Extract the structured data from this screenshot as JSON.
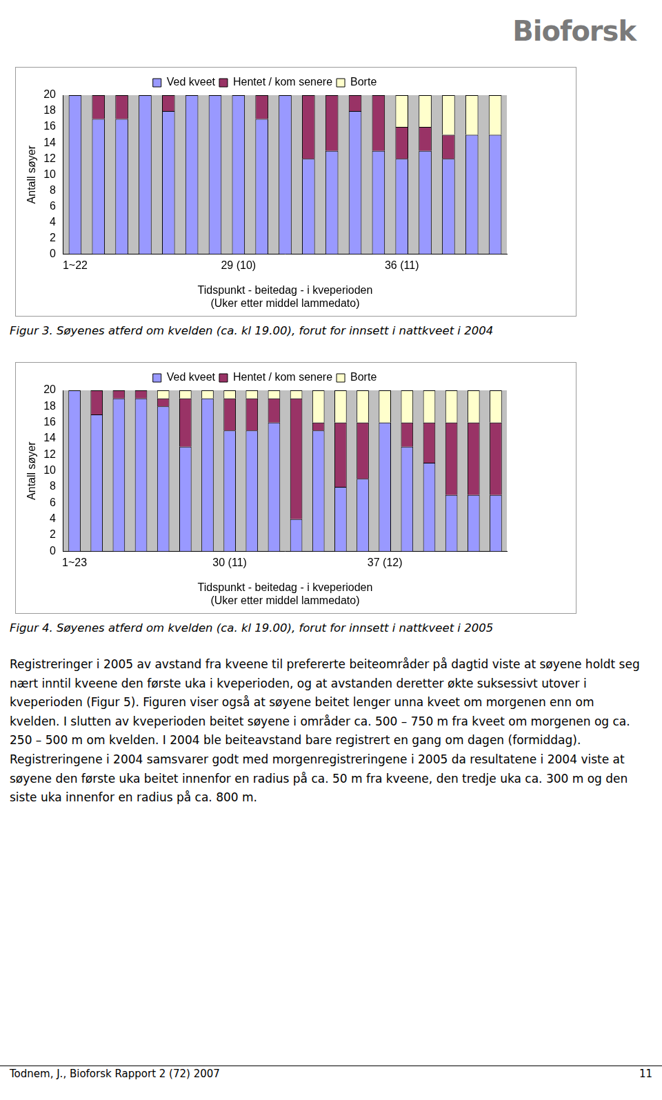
{
  "logo": "Bioforsk",
  "chart_data": [
    {
      "type": "bar",
      "stacked": true,
      "grid": false,
      "legend": "top",
      "caption": "Figur 3. Søyenes atferd om kvelden (ca. kl 19.00), forut for innsett i nattkveet i 2004",
      "x_label": [
        "Tidspunkt - beitedag - i kveperioden",
        "(Uker etter middel lammedato)"
      ],
      "y_label": "Antall søyer",
      "categories": [
        "1~22",
        null,
        null,
        null,
        null,
        null,
        null,
        "29 (10)",
        null,
        null,
        null,
        null,
        null,
        null,
        "36 (11)",
        null,
        null,
        null,
        null
      ],
      "ylim": [
        0,
        20
      ],
      "yticks": [
        0,
        2,
        4,
        6,
        8,
        10,
        12,
        14,
        16,
        18,
        20
      ],
      "series": [
        {
          "name": "Ved kveet",
          "color": "#9999ff",
          "values": [
            20,
            17,
            17,
            20,
            18,
            20,
            20,
            20,
            17,
            20,
            12,
            13,
            18,
            13,
            12,
            13,
            12,
            15,
            15
          ]
        },
        {
          "name": "Hentet / kom senere",
          "color": "#993366",
          "values": [
            0,
            3,
            3,
            0,
            2,
            0,
            0,
            0,
            3,
            0,
            8,
            7,
            2,
            7,
            4,
            3,
            3,
            0,
            0
          ]
        },
        {
          "name": "Borte",
          "color": "#ffffcc",
          "values": [
            0,
            0,
            0,
            0,
            0,
            0,
            0,
            0,
            0,
            0,
            0,
            0,
            0,
            0,
            4,
            4,
            5,
            5,
            5
          ]
        }
      ]
    },
    {
      "type": "bar",
      "stacked": true,
      "grid": false,
      "legend": "top",
      "caption": "Figur 4. Søyenes atferd om kvelden (ca. kl 19.00), forut for innsett i nattkveet i 2005",
      "x_label": [
        "Tidspunkt - beitedag - i kveperioden",
        "(Uker etter middel lammedato)"
      ],
      "y_label": "Antall søyer",
      "categories": [
        "1~23",
        null,
        null,
        null,
        null,
        null,
        null,
        "30 (11)",
        null,
        null,
        null,
        null,
        null,
        null,
        "37 (12)",
        null,
        null,
        null,
        null,
        null
      ],
      "ylim": [
        0,
        20
      ],
      "yticks": [
        0,
        2,
        4,
        6,
        8,
        10,
        12,
        14,
        16,
        18,
        20
      ],
      "series": [
        {
          "name": "Ved kveet",
          "color": "#9999ff",
          "values": [
            20,
            17,
            19,
            19,
            18,
            13,
            19,
            15,
            15,
            16,
            4,
            15,
            8,
            9,
            16,
            13,
            11,
            7,
            7,
            7
          ]
        },
        {
          "name": "Hentet / kom senere",
          "color": "#993366",
          "values": [
            0,
            3,
            1,
            1,
            1,
            6,
            0,
            4,
            4,
            3,
            15,
            1,
            8,
            7,
            0,
            3,
            5,
            9,
            9,
            9
          ]
        },
        {
          "name": "Borte",
          "color": "#ffffcc",
          "values": [
            0,
            0,
            0,
            0,
            1,
            1,
            1,
            1,
            1,
            1,
            1,
            4,
            4,
            4,
            4,
            4,
            4,
            4,
            4,
            4
          ]
        }
      ]
    }
  ],
  "body": "Registreringer i 2005 av avstand fra kveene til prefererte beiteområder på dagtid viste at søyene holdt seg nært inntil kveene den første uka i kveperioden, og at avstanden deretter økte suksessivt utover i kveperioden (Figur 5). Figuren viser også at søyene beitet lenger unna kveet om morgenen enn om kvelden. I slutten av kveperioden beitet søyene i områder ca. 500 – 750 m fra kveet om morgenen og ca. 250 – 500 m om kvelden. I 2004 ble beiteavstand bare registrert en gang om dagen (formiddag). Registreringene i 2004 samsvarer godt med morgenregistreringene i 2005 da resultatene i 2004 viste at søyene den første uka beitet innenfor en radius på ca. 50 m fra kveene, den tredje uka ca. 300 m og den siste uka innenfor en radius på ca. 800 m.",
  "footer": {
    "left": "Todnem, J., Bioforsk Rapport 2 (72) 2007",
    "right": "11"
  }
}
